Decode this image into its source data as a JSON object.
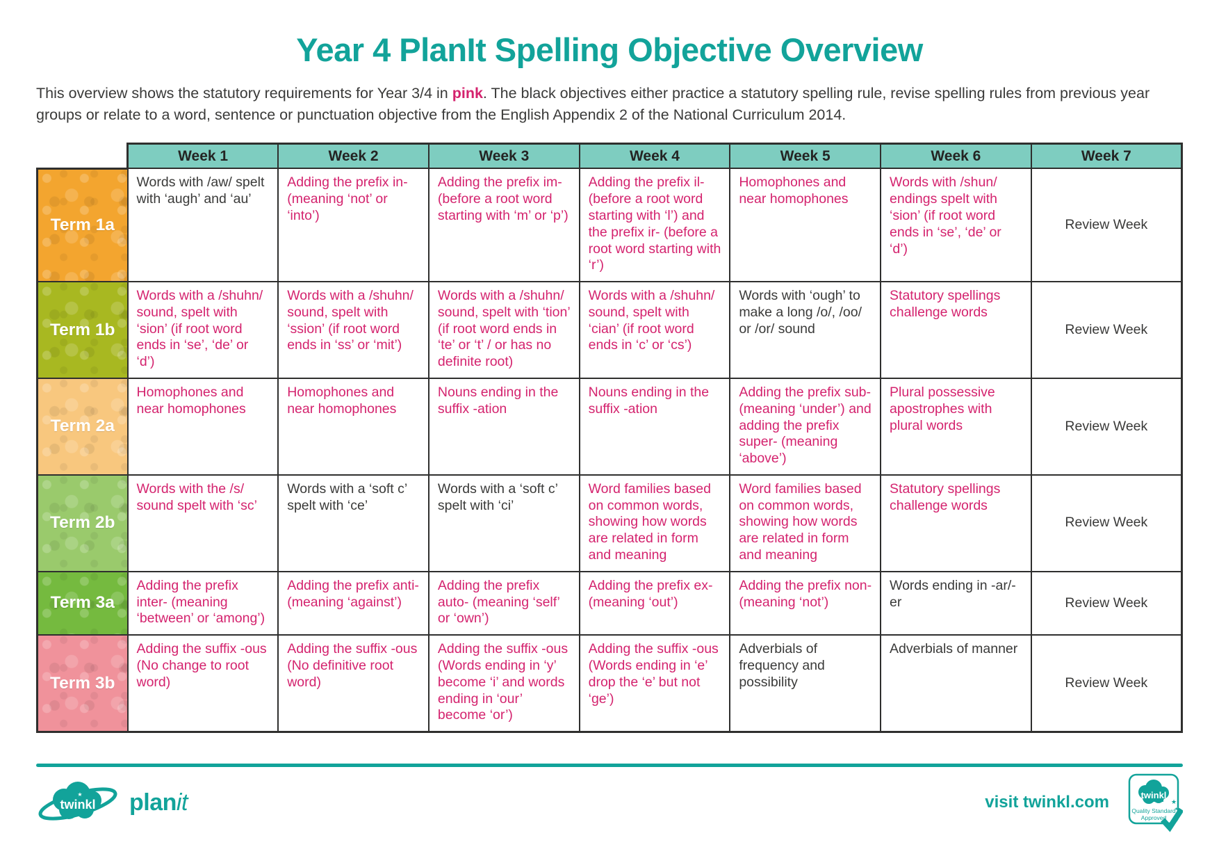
{
  "title": "Year 4 PlanIt Spelling Objective Overview",
  "intro": {
    "before_pink": "This overview shows the statutory requirements for Year 3/4 in ",
    "pink_word": "pink",
    "after_pink": ". The black objectives either practice a statutory spelling rule, revise spelling rules from previous year groups or relate to a word, sentence or punctuation objective from the English Appendix 2 of the National Curriculum 2014."
  },
  "colors": {
    "teal": "#12a39a",
    "header_teal": "#7ecdc0",
    "pink": "#d4236e",
    "ink": "#3a3a39",
    "border": "#2f2f2e"
  },
  "table": {
    "week_headers": [
      "Week 1",
      "Week 2",
      "Week 3",
      "Week 4",
      "Week 5",
      "Week 6",
      "Week 7"
    ],
    "rows": [
      {
        "term": "Term 1a",
        "color": "#f3a52f",
        "cells": [
          {
            "text": "Words with /aw/ spelt with ‘augh’ and ‘au’",
            "pink": false
          },
          {
            "text": "Adding the prefix in- (meaning ‘not’ or ‘into’)",
            "pink": true
          },
          {
            "text": "Adding the prefix im- (before a root word starting with ‘m’ or ‘p’)",
            "pink": true
          },
          {
            "text": "Adding the prefix il- (before a root word starting with ‘l’) and the prefix ir- (before a root word starting with ‘r’)",
            "pink": true
          },
          {
            "text": "Homophones and near homophones",
            "pink": true
          },
          {
            "text": "Words with /shun/ endings spelt with ‘sion’ (if root word ends in ‘se’, ‘de’ or ‘d’)",
            "pink": true
          },
          {
            "text": "Review Week",
            "pink": false,
            "review": true
          }
        ]
      },
      {
        "term": "Term 1b",
        "color": "#a8b821",
        "cells": [
          {
            "text": "Words with a /shuhn/ sound, spelt with ‘sion’ (if root word ends in ‘se’, ‘de’ or ‘d’)",
            "pink": true
          },
          {
            "text": "Words with a /shuhn/ sound, spelt with ‘ssion’ (if root word ends in ‘ss’ or ‘mit’)",
            "pink": true
          },
          {
            "text": "Words with a /shuhn/ sound, spelt with ‘tion’ (if root word ends in ‘te’ or ‘t’ / or has no definite root)",
            "pink": true
          },
          {
            "text": "Words with a /shuhn/ sound, spelt with ‘cian’ (if root word ends in ‘c’ or ‘cs’)",
            "pink": true
          },
          {
            "text": "Words with ‘ough’ to make a long /o/, /oo/ or /or/ sound",
            "pink": false
          },
          {
            "text": "Statutory spellings challenge words",
            "pink": true
          },
          {
            "text": "Review Week",
            "pink": false,
            "review": true
          }
        ]
      },
      {
        "term": "Term 2a",
        "color": "#f8c77e",
        "cells": [
          {
            "text": "Homophones and near homophones",
            "pink": true
          },
          {
            "text": "Homophones and near homophones",
            "pink": true
          },
          {
            "text": "Nouns ending in the suffix -ation",
            "pink": true
          },
          {
            "text": "Nouns ending in the suffix -ation",
            "pink": true
          },
          {
            "text": "Adding the prefix sub- (meaning ‘under’) and adding the prefix super- (meaning ‘above’)",
            "pink": true
          },
          {
            "text": "Plural possessive apostrophes with plural words",
            "pink": true
          },
          {
            "text": "Review Week",
            "pink": false,
            "review": true
          }
        ]
      },
      {
        "term": "Term 2b",
        "color": "#9aca6c",
        "cells": [
          {
            "text": "Words with the /s/ sound spelt with ‘sc’",
            "pink": true
          },
          {
            "text": "Words with a ‘soft c’ spelt with ‘ce’",
            "pink": false
          },
          {
            "text": "Words with a ‘soft c’ spelt with ‘ci’",
            "pink": false
          },
          {
            "text": "Word families based on common words, showing how words are related in form and meaning",
            "pink": true
          },
          {
            "text": "Word families based on common words, showing how words are related in form and meaning",
            "pink": true
          },
          {
            "text": "Statutory spellings challenge words",
            "pink": true
          },
          {
            "text": "Review Week",
            "pink": false,
            "review": true
          }
        ]
      },
      {
        "term": "Term 3a",
        "color": "#75ba3f",
        "cells": [
          {
            "text": "Adding the prefix inter- (meaning ‘between’ or ‘among’)",
            "pink": true
          },
          {
            "text": "Adding the prefix anti- (meaning ‘against’)",
            "pink": true
          },
          {
            "text": "Adding the prefix auto- (meaning ‘self’ or ‘own’)",
            "pink": true
          },
          {
            "text": "Adding the prefix ex- (meaning ‘out’)",
            "pink": true
          },
          {
            "text": "Adding the prefix non- (meaning ‘not’)",
            "pink": true
          },
          {
            "text": "Words ending in -ar/-er",
            "pink": false
          },
          {
            "text": "Review Week",
            "pink": false,
            "review": true
          }
        ]
      },
      {
        "term": "Term 3b",
        "color": "#f0929b",
        "cells": [
          {
            "text": "Adding the suffix -ous (No change to root word)",
            "pink": true
          },
          {
            "text": "Adding the suffix -ous (No definitive root word)",
            "pink": true
          },
          {
            "text": "Adding the suffix -ous (Words ending in ‘y’ become ‘i’ and words ending in ‘our’ become ‘or’)",
            "pink": true
          },
          {
            "text": "Adding the suffix -ous (Words ending in ‘e’ drop the ‘e’ but not ‘ge’)",
            "pink": true
          },
          {
            "text": "Adverbials of frequency and possibility",
            "pink": false
          },
          {
            "text": "Adverbials of manner",
            "pink": false
          },
          {
            "text": "Review Week",
            "pink": false,
            "review": true
          }
        ]
      }
    ]
  },
  "footer": {
    "logo_brand": "twinkl",
    "logo_plan": "plan",
    "logo_it": "it",
    "visit": "visit twinkl.com",
    "badge": {
      "brand": "twinkl",
      "line1": "Quality Standard",
      "line2": "Approved"
    }
  }
}
